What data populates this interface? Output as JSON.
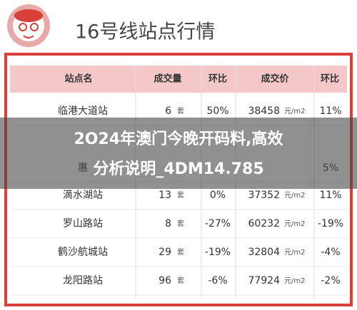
{
  "header": {
    "title": "16号线站点行情"
  },
  "table": {
    "columns": [
      "站点名",
      "成交量",
      "环比",
      "成交价",
      "环比"
    ],
    "rows": [
      [
        "临港大道站",
        "6",
        "套",
        "50%",
        "38458",
        "元/m2",
        "11%"
      ],
      [
        "惠",
        null,
        null,
        null,
        null,
        null,
        "5%"
      ],
      [
        "滴水湖站",
        "13",
        "套",
        "0%",
        "37352",
        "元/m2",
        "11%"
      ],
      [
        "罗山路站",
        "8",
        "套",
        "-27%",
        "60232",
        "元/m2",
        "-19%"
      ],
      [
        "鹤沙航城站",
        "29",
        "套",
        "-19%",
        "32804",
        "元/m2",
        "-4%"
      ],
      [
        "龙阳路站",
        "96",
        "套",
        "-6%",
        "77924",
        "元/m2",
        "-2%"
      ]
    ]
  },
  "overlay": {
    "lines": [
      "2O24年澳门今晚开码料,高效",
      "分析说明_4DM14.785"
    ]
  }
}
